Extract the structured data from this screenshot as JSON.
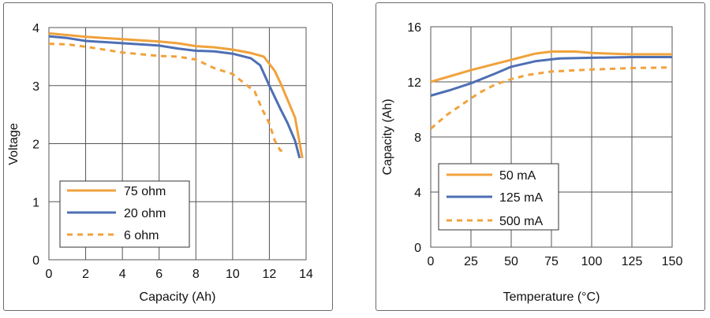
{
  "chart_data": [
    {
      "type": "line",
      "title": "",
      "xlabel": "Capacity (Ah)",
      "ylabel": "Voltage",
      "xlim": [
        0,
        14
      ],
      "ylim": [
        0,
        4
      ],
      "xticks": [
        0,
        2,
        4,
        6,
        8,
        10,
        12,
        14
      ],
      "yticks": [
        0,
        1,
        2,
        3,
        4
      ],
      "grid": true,
      "legend_position": "bottom-left",
      "series": [
        {
          "name": "75 ohm",
          "color": "#F0A23C",
          "style": "solid",
          "x": [
            0,
            2,
            4,
            6,
            7,
            8,
            9,
            10,
            11,
            11.7,
            12.3,
            12.6,
            13.0,
            13.4,
            13.8
          ],
          "y": [
            3.9,
            3.84,
            3.8,
            3.76,
            3.73,
            3.68,
            3.66,
            3.62,
            3.56,
            3.5,
            3.25,
            3.05,
            2.75,
            2.45,
            1.75
          ]
        },
        {
          "name": "20 ohm",
          "color": "#4E6FB4",
          "style": "solid",
          "x": [
            0,
            1,
            2,
            4,
            6,
            7,
            8,
            9,
            10,
            11,
            11.5,
            12.0,
            12.6,
            13.0,
            13.4,
            13.65
          ],
          "y": [
            3.85,
            3.82,
            3.77,
            3.73,
            3.69,
            3.64,
            3.6,
            3.59,
            3.55,
            3.47,
            3.35,
            3.0,
            2.6,
            2.35,
            2.05,
            1.75
          ]
        },
        {
          "name": "6 ohm",
          "color": "#F0A23C",
          "style": "dashed",
          "x": [
            0,
            1,
            2,
            4,
            6,
            7,
            8,
            9,
            10,
            10.6,
            11.2,
            11.6,
            12.0,
            12.3,
            12.6,
            12.8
          ],
          "y": [
            3.72,
            3.71,
            3.67,
            3.57,
            3.51,
            3.5,
            3.45,
            3.3,
            3.2,
            3.05,
            2.9,
            2.6,
            2.35,
            2.05,
            1.88,
            1.88
          ]
        }
      ]
    },
    {
      "type": "line",
      "title": "",
      "xlabel": "Temperature (°C)",
      "ylabel": "Capacity (Ah)",
      "xlim": [
        0,
        150
      ],
      "ylim": [
        0,
        16
      ],
      "xticks": [
        0,
        25,
        50,
        75,
        100,
        125,
        150
      ],
      "yticks": [
        0,
        4,
        8,
        12,
        16
      ],
      "grid": true,
      "legend_position": "bottom-left",
      "series": [
        {
          "name": "50 mA",
          "color": "#F0A23C",
          "style": "solid",
          "x": [
            0,
            25,
            50,
            65,
            75,
            90,
            100,
            125,
            150
          ],
          "y": [
            12.0,
            12.85,
            13.6,
            14.05,
            14.2,
            14.2,
            14.1,
            14.0,
            14.0
          ]
        },
        {
          "name": "125 mA",
          "color": "#4E6FB4",
          "style": "solid",
          "x": [
            0,
            12,
            25,
            40,
            50,
            65,
            80,
            100,
            125,
            150
          ],
          "y": [
            11.0,
            11.4,
            11.9,
            12.6,
            13.1,
            13.5,
            13.7,
            13.75,
            13.8,
            13.8
          ]
        },
        {
          "name": "500 mA",
          "color": "#F0A23C",
          "style": "dashed",
          "x": [
            0,
            10,
            20,
            30,
            40,
            50,
            60,
            75,
            100,
            125,
            150
          ],
          "y": [
            8.6,
            9.6,
            10.4,
            11.2,
            11.8,
            12.2,
            12.5,
            12.75,
            12.9,
            13.0,
            13.05
          ]
        }
      ]
    }
  ]
}
